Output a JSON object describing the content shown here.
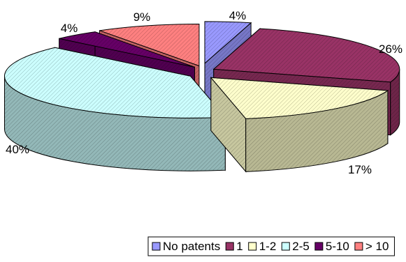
{
  "chart_data": {
    "type": "pie",
    "style": "3d-exploded",
    "title": "",
    "legend_position": "bottom",
    "slices": [
      {
        "label": "No patents",
        "value": 4,
        "display": "4%",
        "color": "#9999ff"
      },
      {
        "label": "1",
        "value": 26,
        "display": "26%",
        "color": "#993366"
      },
      {
        "label": "1-2",
        "value": 17,
        "display": "17%",
        "color": "#ffffcc"
      },
      {
        "label": "2-5",
        "value": 40,
        "display": "40%",
        "color": "#ccffff"
      },
      {
        "label": "5-10",
        "value": 4,
        "display": "4%",
        "color": "#660066"
      },
      {
        "label": "> 10",
        "value": 9,
        "display": "9%",
        "color": "#ff8080"
      }
    ]
  }
}
